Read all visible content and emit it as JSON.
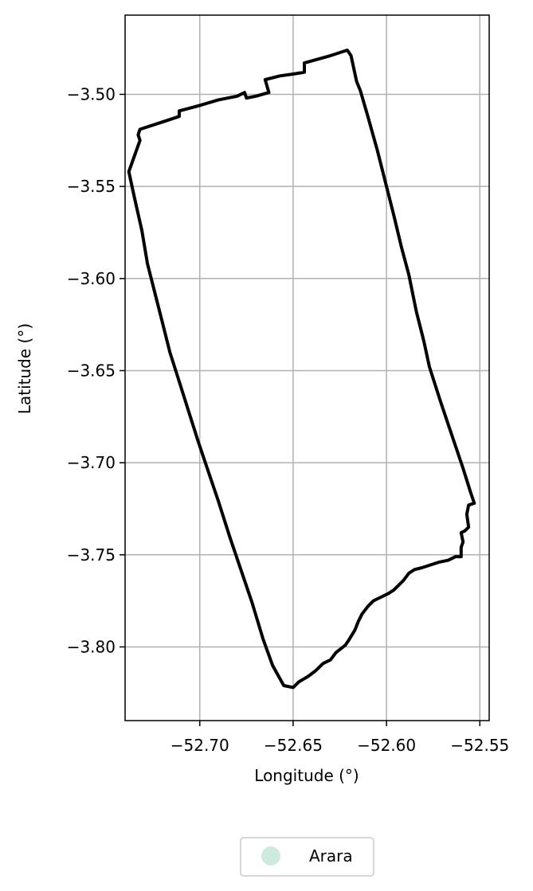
{
  "chart_data": {
    "type": "map",
    "xlabel": "Longitude (°)",
    "ylabel": "Latitude (°)",
    "xlim": [
      -52.74,
      -52.545
    ],
    "ylim": [
      -3.84,
      -3.457
    ],
    "x_ticks": [
      -52.7,
      -52.65,
      -52.6,
      -52.55
    ],
    "x_tick_labels": [
      "−52.70",
      "−52.65",
      "−52.60",
      "−52.55"
    ],
    "y_ticks": [
      -3.5,
      -3.55,
      -3.6,
      -3.65,
      -3.7,
      -3.75,
      -3.8
    ],
    "y_tick_labels": [
      "−3.50",
      "−3.55",
      "−3.60",
      "−3.65",
      "−3.70",
      "−3.75",
      "−3.80"
    ],
    "grid": true,
    "legend": {
      "position": "bottom-center",
      "entries": [
        {
          "label": "Arara",
          "color": "#cdebdc",
          "marker": "circle"
        }
      ]
    },
    "boundary": {
      "color": "#000000",
      "coordinates": [
        [
          -52.732,
          -3.519
        ],
        [
          -52.72,
          -3.515
        ],
        [
          -52.711,
          -3.512
        ],
        [
          -52.711,
          -3.509
        ],
        [
          -52.7,
          -3.506
        ],
        [
          -52.69,
          -3.503
        ],
        [
          -52.68,
          -3.501
        ],
        [
          -52.676,
          -3.499
        ],
        [
          -52.675,
          -3.502
        ],
        [
          -52.67,
          -3.501
        ],
        [
          -52.663,
          -3.499
        ],
        [
          -52.665,
          -3.492
        ],
        [
          -52.657,
          -3.49
        ],
        [
          -52.65,
          -3.489
        ],
        [
          -52.644,
          -3.488
        ],
        [
          -52.644,
          -3.483
        ],
        [
          -52.63,
          -3.479
        ],
        [
          -52.621,
          -3.476
        ],
        [
          -52.619,
          -3.479
        ],
        [
          -52.616,
          -3.493
        ],
        [
          -52.614,
          -3.498
        ],
        [
          -52.61,
          -3.512
        ],
        [
          -52.605,
          -3.53
        ],
        [
          -52.6,
          -3.55
        ],
        [
          -52.596,
          -3.566
        ],
        [
          -52.592,
          -3.583
        ],
        [
          -52.588,
          -3.598
        ],
        [
          -52.584,
          -3.618
        ],
        [
          -52.58,
          -3.634
        ],
        [
          -52.577,
          -3.648
        ],
        [
          -52.571,
          -3.667
        ],
        [
          -52.565,
          -3.685
        ],
        [
          -52.559,
          -3.703
        ],
        [
          -52.555,
          -3.716
        ],
        [
          -52.553,
          -3.722
        ],
        [
          -52.556,
          -3.723
        ],
        [
          -52.557,
          -3.728
        ],
        [
          -52.556,
          -3.735
        ],
        [
          -52.558,
          -3.737
        ],
        [
          -52.56,
          -3.738
        ],
        [
          -52.559,
          -3.743
        ],
        [
          -52.56,
          -3.746
        ],
        [
          -52.56,
          -3.751
        ],
        [
          -52.563,
          -3.751
        ],
        [
          -52.567,
          -3.753
        ],
        [
          -52.572,
          -3.754
        ],
        [
          -52.575,
          -3.755
        ],
        [
          -52.581,
          -3.757
        ],
        [
          -52.585,
          -3.758
        ],
        [
          -52.588,
          -3.76
        ],
        [
          -52.591,
          -3.764
        ],
        [
          -52.593,
          -3.766
        ],
        [
          -52.596,
          -3.769
        ],
        [
          -52.599,
          -3.771
        ],
        [
          -52.603,
          -3.773
        ],
        [
          -52.607,
          -3.775
        ],
        [
          -52.61,
          -3.778
        ],
        [
          -52.613,
          -3.782
        ],
        [
          -52.615,
          -3.786
        ],
        [
          -52.617,
          -3.791
        ],
        [
          -52.62,
          -3.796
        ],
        [
          -52.622,
          -3.799
        ],
        [
          -52.627,
          -3.803
        ],
        [
          -52.63,
          -3.807
        ],
        [
          -52.634,
          -3.809
        ],
        [
          -52.638,
          -3.813
        ],
        [
          -52.642,
          -3.816
        ],
        [
          -52.647,
          -3.819
        ],
        [
          -52.65,
          -3.822
        ],
        [
          -52.655,
          -3.821
        ],
        [
          -52.661,
          -3.81
        ],
        [
          -52.666,
          -3.796
        ],
        [
          -52.672,
          -3.776
        ],
        [
          -52.678,
          -3.758
        ],
        [
          -52.684,
          -3.74
        ],
        [
          -52.69,
          -3.721
        ],
        [
          -52.696,
          -3.703
        ],
        [
          -52.701,
          -3.688
        ],
        [
          -52.706,
          -3.672
        ],
        [
          -52.711,
          -3.656
        ],
        [
          -52.716,
          -3.64
        ],
        [
          -52.72,
          -3.624
        ],
        [
          -52.724,
          -3.608
        ],
        [
          -52.728,
          -3.592
        ],
        [
          -52.731,
          -3.574
        ],
        [
          -52.735,
          -3.556
        ],
        [
          -52.738,
          -3.542
        ],
        [
          -52.732,
          -3.525
        ],
        [
          -52.733,
          -3.522
        ],
        [
          -52.732,
          -3.519
        ]
      ]
    }
  }
}
